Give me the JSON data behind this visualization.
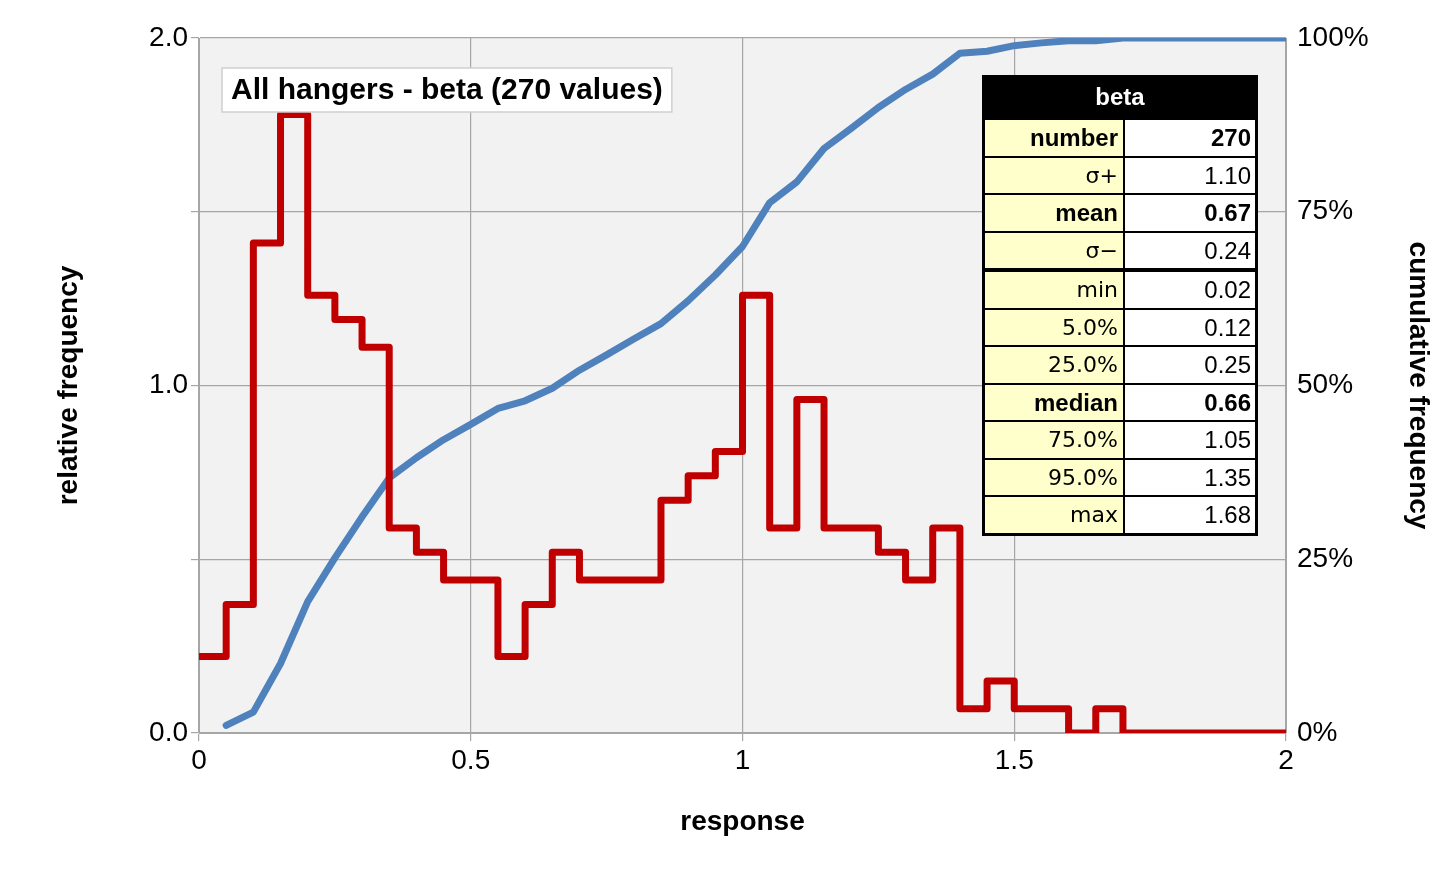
{
  "chart_data": {
    "type": "histogram",
    "title": "All hangers - beta (270 values)",
    "xlabel": "response",
    "ylabel": "relative frequency",
    "y2label": "cumulative frequency",
    "bins": [
      0,
      0.05,
      0.1,
      0.15,
      0.2,
      0.25,
      0.3,
      0.35,
      0.4,
      0.45,
      0.5,
      0.55,
      0.6,
      0.65,
      0.7,
      0.75,
      0.8,
      0.85,
      0.9,
      0.95,
      1,
      1.05,
      1.1,
      1.15,
      1.2,
      1.25,
      1.3,
      1.35,
      1.4,
      1.45,
      1.5,
      1.55,
      1.6,
      1.65,
      1.7,
      1.75,
      1.8,
      1.85,
      1.9,
      1.95,
      2
    ],
    "values": [
      0.22,
      0.37,
      1.41,
      1.78,
      1.26,
      1.19,
      1.11,
      0.59,
      0.52,
      0.44,
      0.44,
      0.22,
      0.37,
      0.52,
      0.44,
      0.44,
      0.44,
      0.67,
      0.74,
      0.81,
      1.26,
      0.59,
      0.96,
      0.59,
      0.59,
      0.52,
      0.44,
      0.59,
      0.07,
      0.15,
      0.07,
      0.07,
      0,
      0.07,
      0,
      0,
      0,
      0,
      0,
      0
    ],
    "color": "#c00000",
    "series": [
      {
        "type": "line",
        "axis": "y2",
        "color": "#4f81bd",
        "x": [
          0.05,
          0.1,
          0.15,
          0.2,
          0.25,
          0.3,
          0.35,
          0.4,
          0.45,
          0.5,
          0.55,
          0.6,
          0.65,
          0.7,
          0.75,
          0.8,
          0.85,
          0.9,
          0.95,
          1,
          1.05,
          1.1,
          1.15,
          1.2,
          1.25,
          1.3,
          1.35,
          1.4,
          1.45,
          1.5,
          1.55,
          1.6,
          1.65,
          1.7,
          1.75,
          1.8,
          1.85,
          1.9,
          1.95,
          2
        ],
        "values": [
          1.1,
          3.0,
          10.0,
          18.9,
          25.2,
          31.1,
          36.7,
          39.6,
          42.2,
          44.4,
          46.7,
          47.8,
          49.6,
          52.2,
          54.4,
          56.7,
          58.9,
          62.2,
          65.9,
          70.0,
          76.3,
          79.3,
          84.1,
          87.0,
          90.0,
          92.6,
          94.8,
          97.8,
          98.1,
          98.9,
          99.3,
          99.6,
          99.6,
          100,
          100,
          100,
          100,
          100,
          100,
          100
        ]
      }
    ],
    "xlim": [
      0,
      2
    ],
    "xticks": [
      0,
      0.5,
      1,
      1.5,
      2
    ],
    "ylim": [
      0,
      2
    ],
    "yticks": [
      {
        "value": 0,
        "label": "0.0"
      },
      {
        "value": 0.5,
        "label": null
      },
      {
        "value": 1,
        "label": "1.0"
      },
      {
        "value": 1.5,
        "label": null
      },
      {
        "value": 2,
        "label": "2.0"
      }
    ],
    "y2lim": [
      0,
      100
    ],
    "y2ticks": [
      {
        "value": 0,
        "label": "0%"
      },
      {
        "value": 25,
        "label": "25%"
      },
      {
        "value": 50,
        "label": "50%"
      },
      {
        "value": 75,
        "label": "75%"
      },
      {
        "value": 100,
        "label": "100%"
      }
    ],
    "grid": true,
    "legend": false,
    "marker": "none",
    "annotations": [
      "beta",
      "number",
      "270",
      "σ+",
      "1.10",
      "mean",
      "0.67",
      "σ−",
      "0.24",
      "min",
      "0.02",
      "5.0%",
      "0.12",
      "25.0%",
      "0.25",
      "median",
      "0.66",
      "75.0%",
      "1.05",
      "95.0%",
      "1.35",
      "max",
      "1.68"
    ]
  }
}
